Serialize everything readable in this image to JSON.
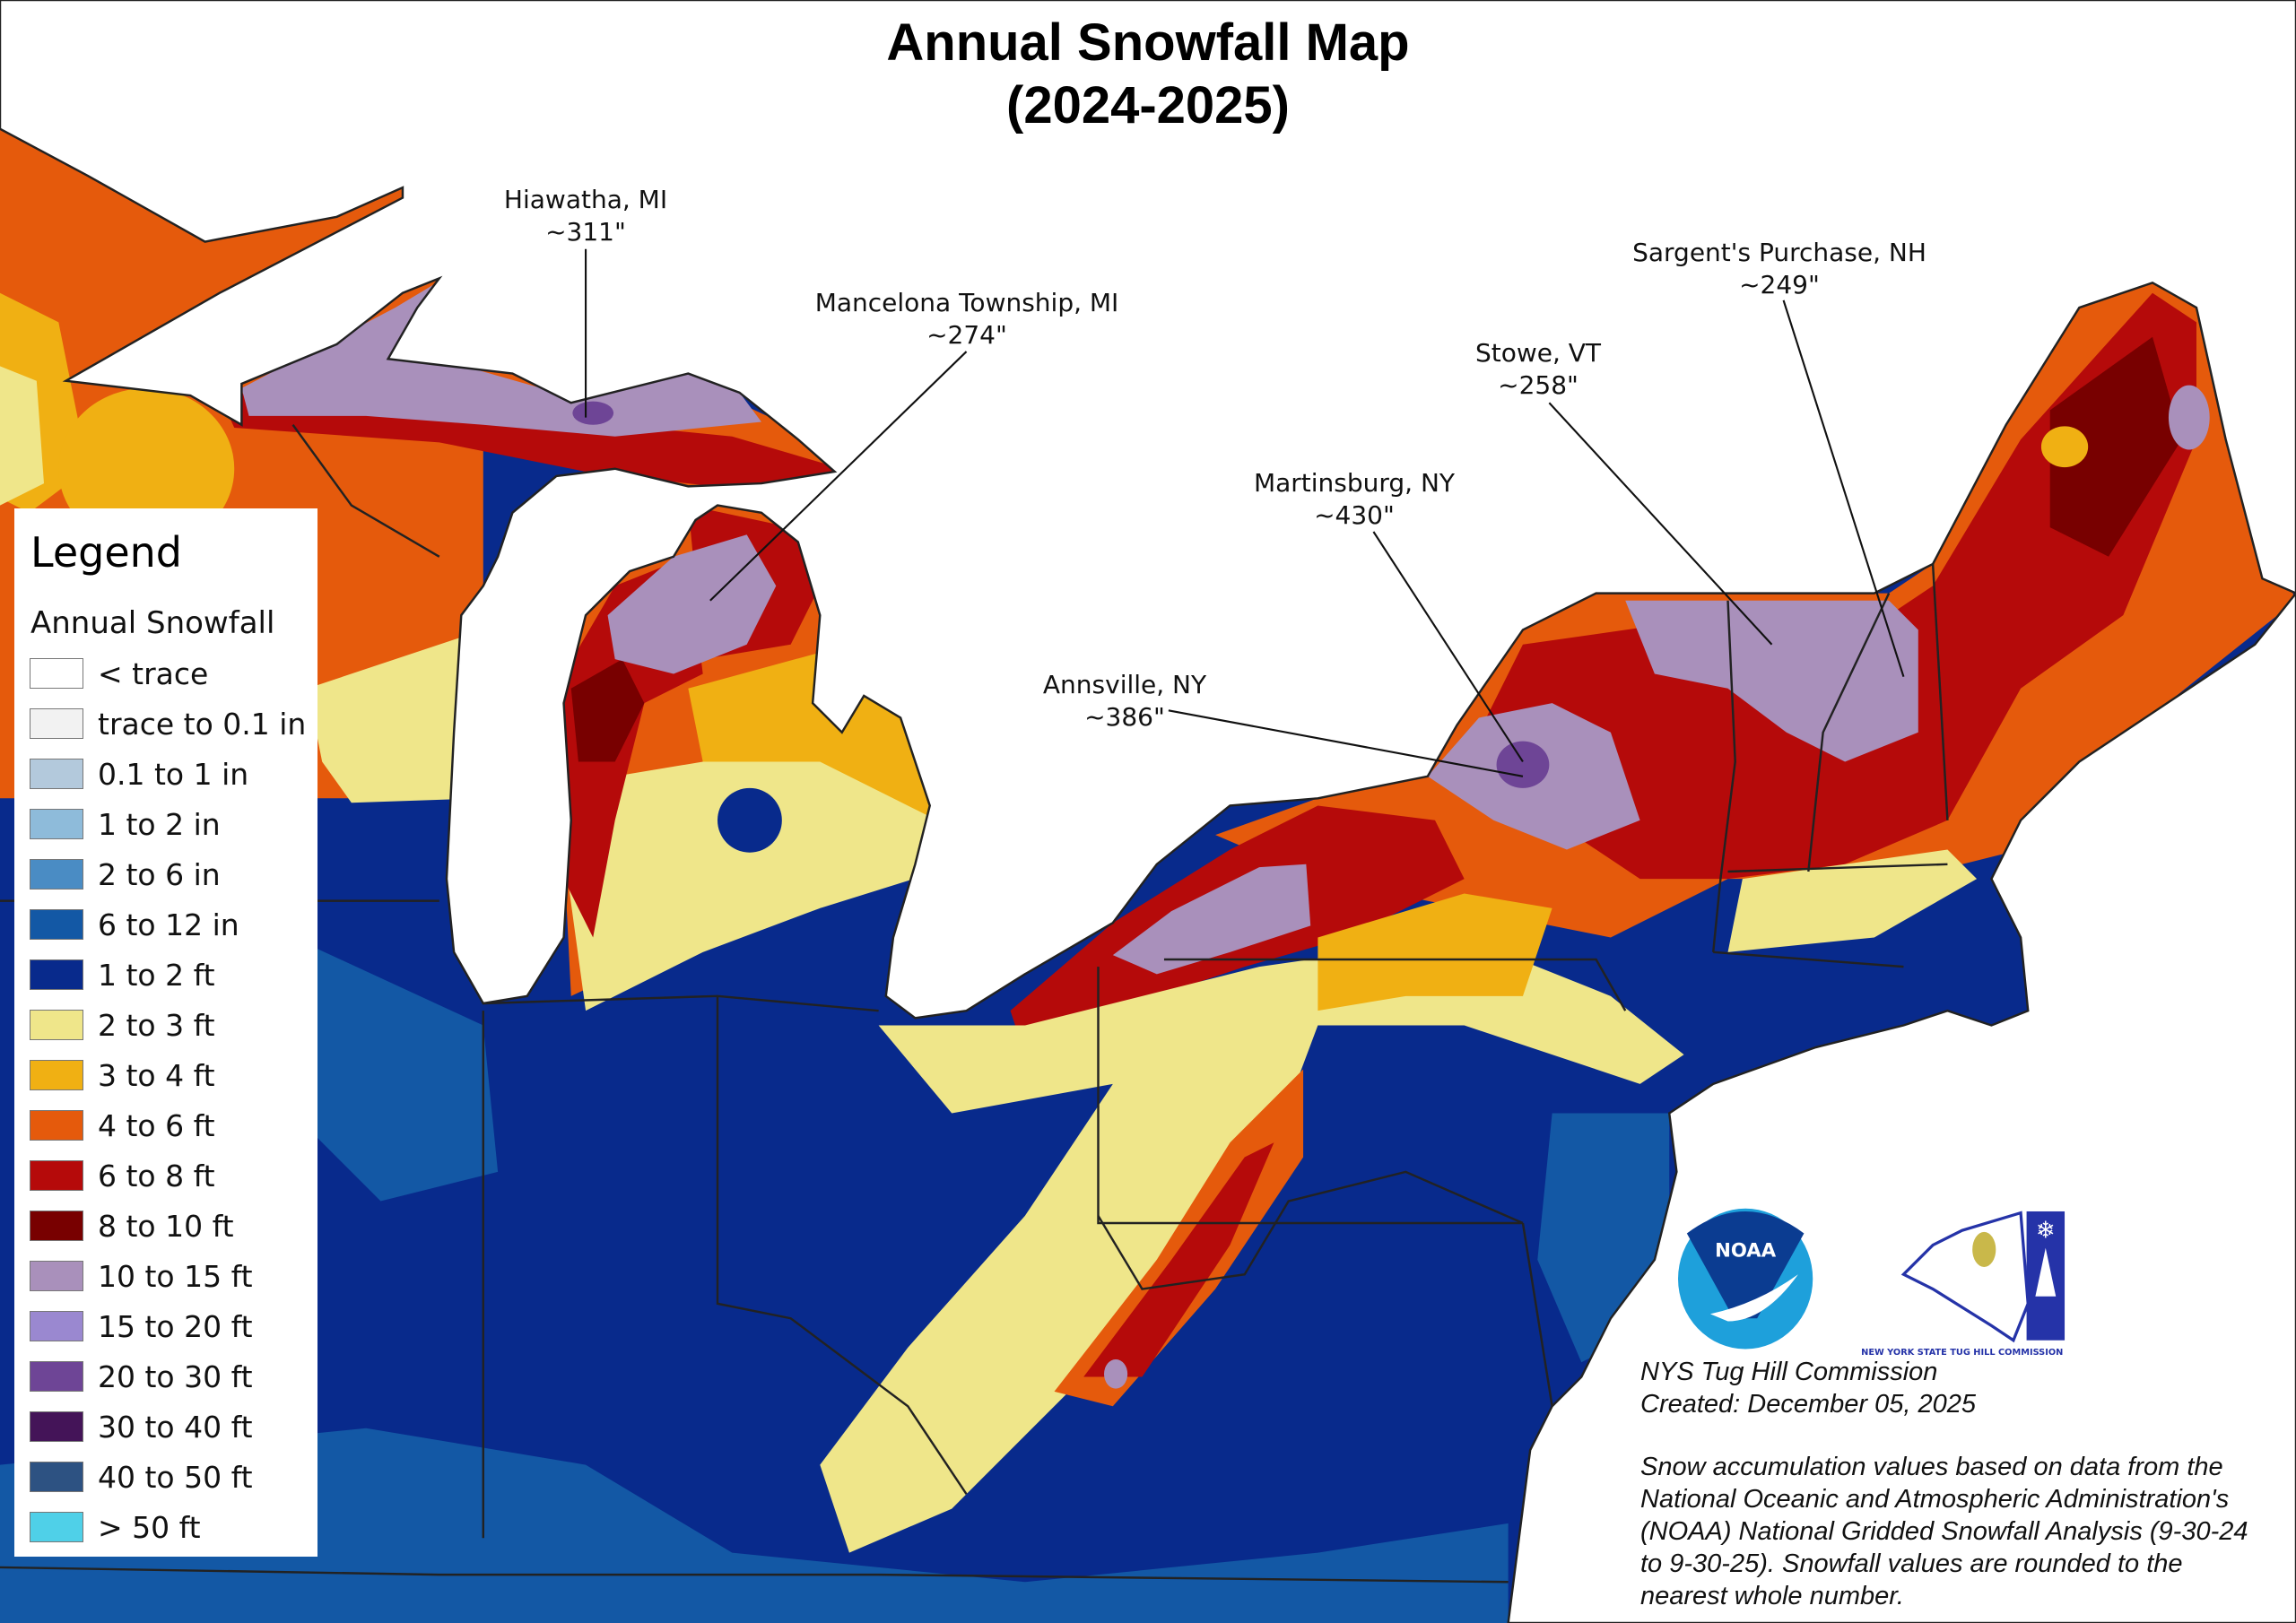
{
  "title": {
    "line1": "Annual Snowfall Map",
    "line2": "(2024-2025)"
  },
  "annotations": [
    {
      "place": "Hiawatha, MI",
      "value": "~311\""
    },
    {
      "place": "Mancelona Township, MI",
      "value": "~274\""
    },
    {
      "place": "Sargent's Purchase, NH",
      "value": "~249\""
    },
    {
      "place": "Stowe, VT",
      "value": "~258\""
    },
    {
      "place": "Martinsburg, NY",
      "value": "~430\""
    },
    {
      "place": "Annsville, NY",
      "value": "~386\""
    }
  ],
  "legend": {
    "title": "Legend",
    "subtitle": "Annual Snowfall",
    "items": [
      {
        "label": "< trace",
        "color": "#ffffff"
      },
      {
        "label": "trace to 0.1 in",
        "color": "#f2f2f2"
      },
      {
        "label": "0.1 to 1 in",
        "color": "#b3c9dc"
      },
      {
        "label": "1 to 2 in",
        "color": "#8ebbda"
      },
      {
        "label": "2 to 6 in",
        "color": "#4a8cc4"
      },
      {
        "label": "6 to 12 in",
        "color": "#1358a5"
      },
      {
        "label": "1 to 2 ft",
        "color": "#082a8c"
      },
      {
        "label": "2 to 3 ft",
        "color": "#efe68a"
      },
      {
        "label": "3 to 4 ft",
        "color": "#f0b013"
      },
      {
        "label": "4 to 6 ft",
        "color": "#e55a0c"
      },
      {
        "label": "6 to 8 ft",
        "color": "#b50a0a"
      },
      {
        "label": "8 to 10 ft",
        "color": "#780000"
      },
      {
        "label": "10 to 15 ft",
        "color": "#a990bb"
      },
      {
        "label": "15 to 20 ft",
        "color": "#9a88d0"
      },
      {
        "label": "20 to 30 ft",
        "color": "#6e4596"
      },
      {
        "label": "30 to 40 ft",
        "color": "#441458"
      },
      {
        "label": "40 to 50 ft",
        "color": "#2d5282"
      },
      {
        "label": "> 50 ft",
        "color": "#4fd0e8"
      }
    ]
  },
  "logos": {
    "noaa": "NOAA",
    "tug_hill": "NEW YORK STATE TUG HILL COMMISSION"
  },
  "credits": {
    "org": "NYS Tug Hill Commission",
    "created": "Created: December 05, 2025",
    "note": "Snow accumulation values based on data from the National Oceanic and Atmospheric Administration's (NOAA) National Gridded Snowfall Analysis (9-30-24 to 9-30-25). Snowfall values are rounded to the nearest whole number."
  }
}
